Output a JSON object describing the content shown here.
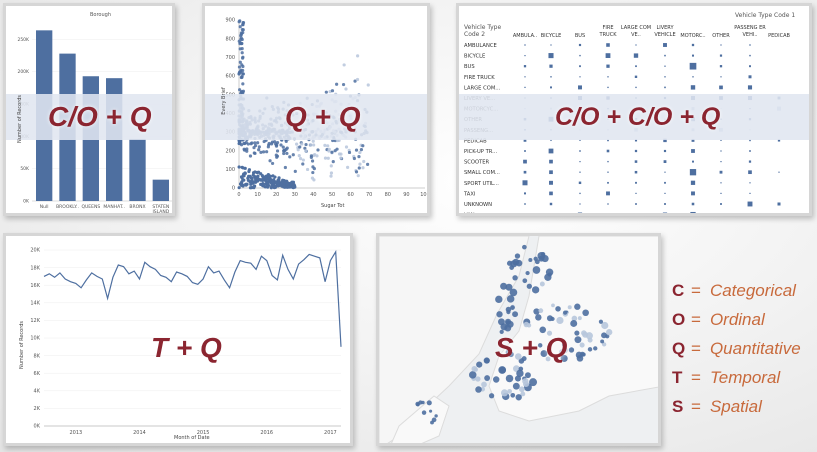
{
  "panels": {
    "bar": {
      "header": "Borough",
      "formula": "C/O + Q",
      "y_title": "Number of Records",
      "x_ticks": [
        "Null",
        "BROOKLY..",
        "QUEENS",
        "MANHAT..",
        "BRONX",
        "STATEN ISLAND"
      ],
      "y_ticks": [
        "250K",
        "200K",
        "150K",
        "100K",
        "50K",
        "0K"
      ]
    },
    "scatter": {
      "formula": "Q + Q",
      "x_title": "Sugar Tot",
      "y_title": "Every Brief",
      "x_ticks": [
        "0",
        "10",
        "20",
        "30",
        "40",
        "50",
        "60",
        "70",
        "80",
        "90",
        "100"
      ],
      "y_ticks": [
        "900",
        "800",
        "700",
        "600",
        "500",
        "400",
        "300",
        "200",
        "100",
        "0"
      ]
    },
    "matrix": {
      "header": "Vehicle Type Code 1",
      "row_header": "Vehicle Type Code 2",
      "formula": "C/O + C/O + Q",
      "columns": [
        "AMBULA..",
        "BICYCLE",
        "BUS",
        "FIRE TRUCK",
        "LARGE COM VE..",
        "LIVERY VEHICLE",
        "MOTORC..",
        "OTHER",
        "PASSENG ER VEHI..",
        "PEDICAB"
      ],
      "rows": [
        "AMBULANCE",
        "BICYCLE",
        "BUS",
        "FIRE TRUCK",
        "LARGE COM...",
        "LIVERY VE...",
        "MOTORCYC...",
        "OTHER",
        "PASSENG...",
        "PEDICAB",
        "PICK-UP TR...",
        "SCOOTER",
        "SMALL COM...",
        "SPORT UTIL...",
        "TAXI",
        "UNKNOWN",
        "VAN"
      ]
    },
    "line": {
      "formula": "T + Q",
      "x_title": "Month of Date",
      "y_title": "Number of Records",
      "x_ticks": [
        "2013",
        "2014",
        "2015",
        "2016",
        "2017"
      ],
      "y_ticks": [
        "20K",
        "18K",
        "16K",
        "14K",
        "12K",
        "10K",
        "8K",
        "6K",
        "4K",
        "2K",
        "0K"
      ]
    },
    "map": {
      "formula": "S + Q"
    }
  },
  "legend": {
    "equals": "=",
    "items": [
      {
        "letter": "C",
        "word": "Categorical"
      },
      {
        "letter": "O",
        "word": "Ordinal"
      },
      {
        "letter": "Q",
        "word": "Quantitative"
      },
      {
        "letter": "T",
        "word": "Temporal"
      },
      {
        "letter": "S",
        "word": "Spatial"
      }
    ]
  },
  "colors": {
    "mark": "#4e6fa0",
    "mark_light": "#b7c6dc",
    "formula": "#8b2530",
    "legend_word": "#c86a3c"
  },
  "chart_data": [
    {
      "type": "bar",
      "title": "Borough",
      "ylabel": "Number of Records",
      "categories": [
        "Null",
        "BROOKLY..",
        "QUEENS",
        "MANHAT..",
        "BRONX",
        "STATEN ISLAND"
      ],
      "values": [
        264000,
        228000,
        193000,
        190000,
        96000,
        33000
      ],
      "ylim": [
        0,
        280000
      ]
    },
    {
      "type": "line",
      "xlabel": "Month of Date",
      "ylabel": "Number of Records",
      "x": [
        "2012-07",
        "2012-08",
        "2012-09",
        "2012-10",
        "2012-11",
        "2012-12",
        "2013-01",
        "2013-02",
        "2013-03",
        "2013-04",
        "2013-05",
        "2013-06",
        "2013-07",
        "2013-08",
        "2013-09",
        "2013-10",
        "2013-11",
        "2013-12",
        "2014-01",
        "2014-02",
        "2014-03",
        "2014-04",
        "2014-05",
        "2014-06",
        "2014-07",
        "2014-08",
        "2014-09",
        "2014-10",
        "2014-11",
        "2014-12",
        "2015-01",
        "2015-02",
        "2015-03",
        "2015-04",
        "2015-05",
        "2015-06",
        "2015-07",
        "2015-08",
        "2015-09",
        "2015-10",
        "2015-11",
        "2015-12",
        "2016-01",
        "2016-02",
        "2016-03",
        "2016-04",
        "2016-05",
        "2016-06",
        "2016-07",
        "2016-08",
        "2016-09",
        "2016-10",
        "2016-11",
        "2016-12",
        "2017-01",
        "2017-02",
        "2017-03"
      ],
      "values": [
        17000,
        17300,
        16900,
        17400,
        16700,
        16400,
        16200,
        15700,
        16600,
        17400,
        17000,
        16700,
        14500,
        16900,
        18300,
        18100,
        17300,
        17600,
        16700,
        18600,
        18100,
        17800,
        17100,
        16900,
        16400,
        17500,
        17300,
        17000,
        16300,
        16100,
        16700,
        18100,
        17400,
        17600,
        16600,
        15700,
        17500,
        18800,
        18600,
        18500,
        17800,
        19300,
        18800,
        17100,
        16600,
        19400,
        17800,
        16700,
        18400,
        18900,
        19500,
        19300,
        19100,
        16400,
        18800,
        19800,
        9000
      ],
      "ylim": [
        0,
        20000
      ]
    }
  ]
}
